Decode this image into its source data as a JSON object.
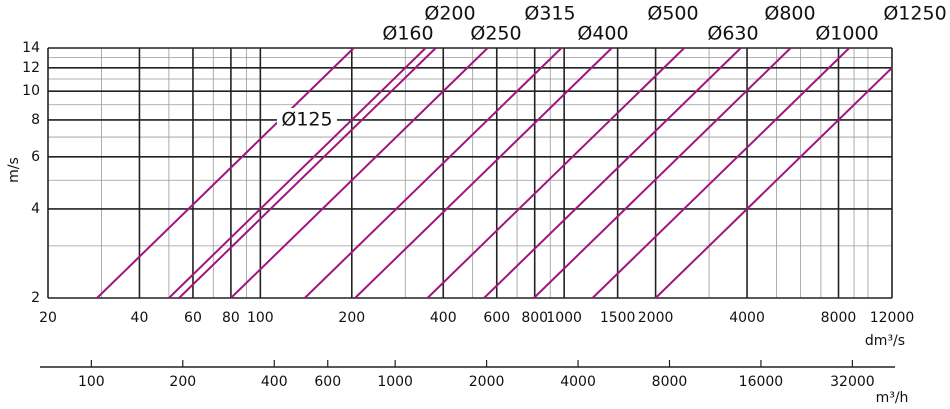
{
  "chart_data": {
    "type": "line",
    "log_x": true,
    "log_y": true,
    "grid": true,
    "y_label": "m/s",
    "x_label": "dm³/s",
    "x2_label": "m³/h",
    "xlim": [
      20,
      12000
    ],
    "ylim": [
      2,
      14
    ],
    "xticks": [
      20,
      40,
      60,
      80,
      100,
      200,
      400,
      600,
      800,
      1000,
      1500,
      2000,
      4000,
      8000,
      12000
    ],
    "x_minor_grid": [
      30,
      50,
      70,
      90,
      300,
      500,
      700,
      900,
      3000,
      5000,
      6000,
      7000,
      9000,
      10000
    ],
    "yticks": [
      2,
      4,
      6,
      8,
      10,
      12,
      14
    ],
    "y_minor_grid": [
      3,
      5,
      7,
      9,
      11,
      13
    ],
    "x2lim": [
      72,
      43200
    ],
    "x2ticks": [
      100,
      200,
      400,
      600,
      1000,
      2000,
      4000,
      8000,
      16000,
      32000
    ],
    "series": [
      {
        "name": "Ø125",
        "color": "#a0157e",
        "x": [
          29,
          203
        ],
        "values": [
          2,
          14
        ]
      },
      {
        "name": "Ø160",
        "color": "#a0157e",
        "x": [
          50,
          350
        ],
        "values": [
          2,
          14
        ]
      },
      {
        "name": "Ø200",
        "color": "#a0157e",
        "x": [
          54,
          378
        ],
        "values": [
          2,
          14
        ]
      },
      {
        "name": "Ø250",
        "color": "#a0157e",
        "x": [
          80,
          560
        ],
        "values": [
          2,
          14
        ]
      },
      {
        "name": "Ø315",
        "color": "#a0157e",
        "x": [
          140,
          980
        ],
        "values": [
          2,
          14
        ]
      },
      {
        "name": "Ø400",
        "color": "#a0157e",
        "x": [
          205,
          1435
        ],
        "values": [
          2,
          14
        ]
      },
      {
        "name": "Ø500",
        "color": "#a0157e",
        "x": [
          355,
          2485
        ],
        "values": [
          2,
          14
        ]
      },
      {
        "name": "Ø630",
        "color": "#a0157e",
        "x": [
          545,
          3815
        ],
        "values": [
          2,
          14
        ]
      },
      {
        "name": "Ø800",
        "color": "#a0157e",
        "x": [
          795,
          5565
        ],
        "values": [
          2,
          14
        ]
      },
      {
        "name": "Ø1000",
        "color": "#a0157e",
        "x": [
          1240,
          8680
        ],
        "values": [
          2,
          14
        ]
      },
      {
        "name": "Ø1250",
        "color": "#a0157e",
        "x": [
          2000,
          12000
        ],
        "values": [
          2,
          12
        ]
      }
    ]
  }
}
